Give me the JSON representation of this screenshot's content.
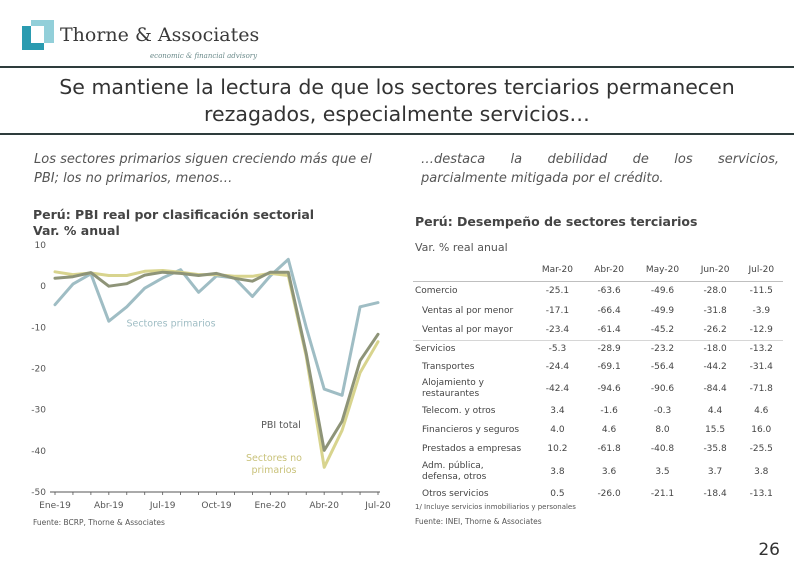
{
  "logo": {
    "name": "Thorne & Associates",
    "tagline": "economic & financial advisory",
    "brand_color": "#2a9bb0"
  },
  "title": "Se mantiene la lectura de que los sectores terciarios permanecen rezagados, especialmente servicios…",
  "left": {
    "subtitle": "Los sectores primarios siguen creciendo más que el PBI; los no primarios, menos…",
    "chart_title_line1": "Perú: PBI real por clasificación sectorial",
    "chart_title_line2": "Var. % anual",
    "source": "Fuente: BCRP, Thorne & Associates"
  },
  "right": {
    "subtitle_line1": "…destaca la debilidad de los servicios,",
    "subtitle_line2": "parcialmente mitigada por el crédito.",
    "chart_title": "Perú: Desempeño de sectores terciarios",
    "chart_sub": "Var. % real anual",
    "note": "1/ Incluye servicios inmobiliarios y personales",
    "source": "Fuente: INEI, Thorne & Associates"
  },
  "chart_data": {
    "type": "line",
    "title": "Perú: PBI real por clasificación sectorial",
    "ylabel": "Var. % anual",
    "ylim": [
      -50,
      10
    ],
    "yticks": [
      10,
      0,
      -10,
      -20,
      -30,
      -40,
      -50
    ],
    "x": [
      "Ene-19",
      "Feb-19",
      "Mar-19",
      "Abr-19",
      "May-19",
      "Jun-19",
      "Jul-19",
      "Ago-19",
      "Sep-19",
      "Oct-19",
      "Nov-19",
      "Dic-19",
      "Ene-20",
      "Feb-20",
      "Mar-20",
      "Abr-20",
      "May-20",
      "Jun-20",
      "Jul-20"
    ],
    "xtick_labels": [
      "Ene-19",
      "Abr-19",
      "Jul-19",
      "Oct-19",
      "Ene-20",
      "Abr-20",
      "Jul-20"
    ],
    "series": [
      {
        "name": "Sectores primarios",
        "color": "#9fbdc4",
        "values": [
          -4.5,
          0.5,
          3.0,
          -8.5,
          -5.0,
          -0.5,
          2.0,
          4.0,
          -1.5,
          2.5,
          2.0,
          -2.5,
          2.5,
          6.5,
          -10.0,
          -25.0,
          -26.5,
          -5.0,
          -4.0
        ]
      },
      {
        "name": "PBI total",
        "color": "#8e9478",
        "values": [
          1.9,
          2.3,
          3.3,
          0.0,
          0.6,
          2.7,
          3.4,
          3.1,
          2.6,
          3.1,
          1.9,
          1.2,
          3.4,
          3.4,
          -16.3,
          -39.9,
          -32.8,
          -18.1,
          -11.7
        ]
      },
      {
        "name": "Sectores no primarios",
        "color": "#d8d48e",
        "values": [
          3.5,
          2.8,
          3.2,
          2.6,
          2.6,
          3.6,
          3.8,
          3.4,
          2.8,
          2.8,
          2.4,
          2.4,
          3.1,
          2.6,
          -17.0,
          -44.0,
          -35.0,
          -21.0,
          -13.5
        ]
      }
    ],
    "annotations": [
      "Sectores primarios",
      "PBI total",
      "Sectores no primarios"
    ]
  },
  "table": {
    "columns": [
      "Mar-20",
      "Abr-20",
      "May-20",
      "Jun-20",
      "Jul-20"
    ],
    "rows": [
      {
        "label": "Comercio",
        "level": 0,
        "values": [
          "-25.1",
          "-63.6",
          "-49.6",
          "-28.0",
          "-11.5"
        ]
      },
      {
        "label": "Ventas al por menor",
        "level": 1,
        "values": [
          "-17.1",
          "-66.4",
          "-49.9",
          "-31.8",
          "-3.9"
        ]
      },
      {
        "label": "Ventas al por mayor",
        "level": 1,
        "values": [
          "-23.4",
          "-61.4",
          "-45.2",
          "-26.2",
          "-12.9"
        ]
      },
      {
        "label": "Servicios",
        "level": 0,
        "values": [
          "-5.3",
          "-28.9",
          "-23.2",
          "-18.0",
          "-13.2"
        ]
      },
      {
        "label": "Transportes",
        "level": 1,
        "values": [
          "-24.4",
          "-69.1",
          "-56.4",
          "-44.2",
          "-31.4"
        ]
      },
      {
        "label": "Alojamiento y restaurantes",
        "level": 1,
        "values": [
          "-42.4",
          "-94.6",
          "-90.6",
          "-84.4",
          "-71.8"
        ]
      },
      {
        "label": "Telecom. y otros",
        "level": 1,
        "values": [
          "3.4",
          "-1.6",
          "-0.3",
          "4.4",
          "4.6"
        ]
      },
      {
        "label": "Financieros y seguros",
        "level": 1,
        "values": [
          "4.0",
          "4.6",
          "8.0",
          "15.5",
          "16.0"
        ]
      },
      {
        "label": "Prestados a empresas",
        "level": 1,
        "values": [
          "10.2",
          "-61.8",
          "-40.8",
          "-35.8",
          "-25.5"
        ]
      },
      {
        "label": "Adm. pública, defensa, otros",
        "level": 1,
        "values": [
          "3.8",
          "3.6",
          "3.5",
          "3.7",
          "3.8"
        ]
      },
      {
        "label": "Otros servicios",
        "level": 1,
        "values": [
          "0.5",
          "-26.0",
          "-21.1",
          "-18.4",
          "-13.1"
        ]
      }
    ]
  },
  "page_number": "26"
}
